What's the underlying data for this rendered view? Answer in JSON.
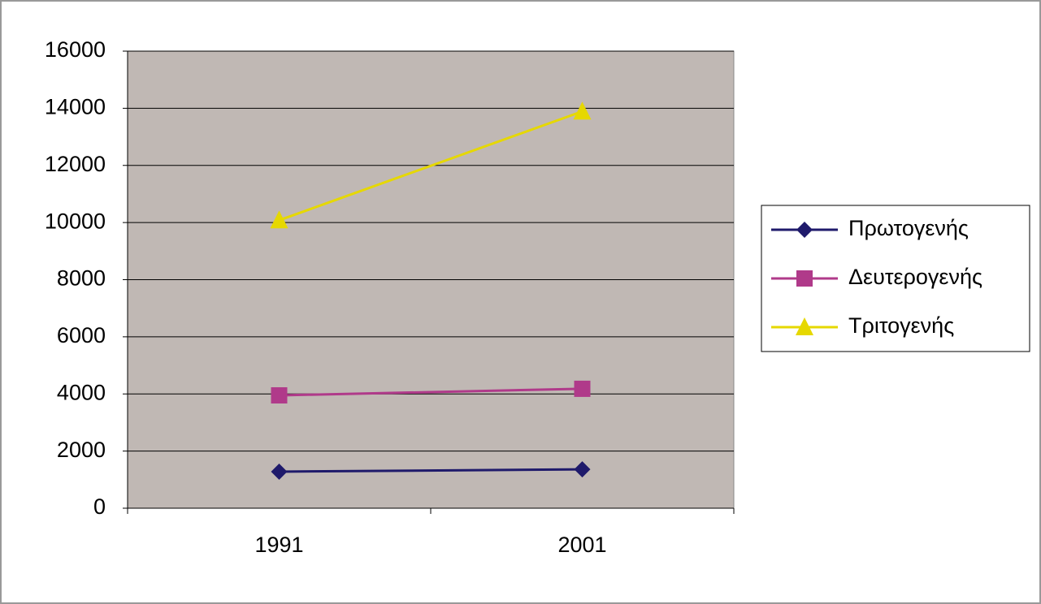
{
  "chart_data": {
    "type": "line",
    "categories": [
      "1991",
      "2001"
    ],
    "series": [
      {
        "name": "Πρωτογενής",
        "color": "#1f1a6b",
        "marker": "diamond",
        "values": [
          1280,
          1360
        ]
      },
      {
        "name": "Δευτερογενής",
        "color": "#b03a8a",
        "marker": "square",
        "values": [
          3950,
          4180
        ]
      },
      {
        "name": "Τριτογενής",
        "color": "#e6d800",
        "marker": "triangle",
        "values": [
          10080,
          13890
        ]
      }
    ],
    "ylim": [
      0,
      16000
    ],
    "yticks": [
      0,
      2000,
      4000,
      6000,
      8000,
      10000,
      12000,
      14000,
      16000
    ],
    "grid": true,
    "legend": "right"
  }
}
